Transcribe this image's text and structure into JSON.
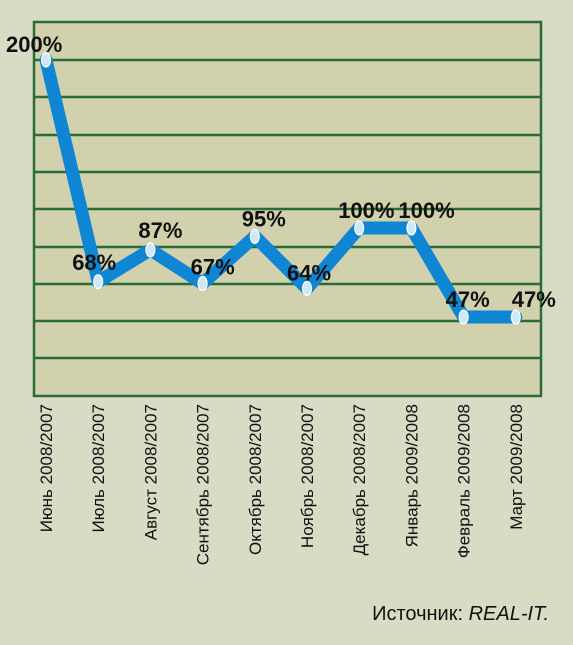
{
  "chart_data": {
    "type": "line",
    "categories": [
      "Июнь 2008/2007",
      "Июль 2008/2007",
      "Август 2008/2007",
      "Сентябрь 2008/2007",
      "Октябрь 2008/2007",
      "Ноябрь 2008/2007",
      "Декабрь 2008/2007",
      "Январь 2009/2008",
      "Февраль 2009/2008",
      "Март 2009/2008"
    ],
    "values": [
      200,
      68,
      87,
      67,
      95,
      64,
      100,
      100,
      47,
      47
    ],
    "value_labels": [
      "200%",
      "68%",
      "87%",
      "67%",
      "95%",
      "64%",
      "100%",
      "100%",
      "47%",
      "47%"
    ],
    "ylim": [
      0,
      200
    ],
    "grid": true,
    "colors": {
      "line": "#0f86d4",
      "plot_bg": "#d2d1ad",
      "grid": "#2a6b3a",
      "marker_fill": "#cfe8f8"
    }
  },
  "source": {
    "label": "Источник:",
    "value": "REAL-IT."
  }
}
